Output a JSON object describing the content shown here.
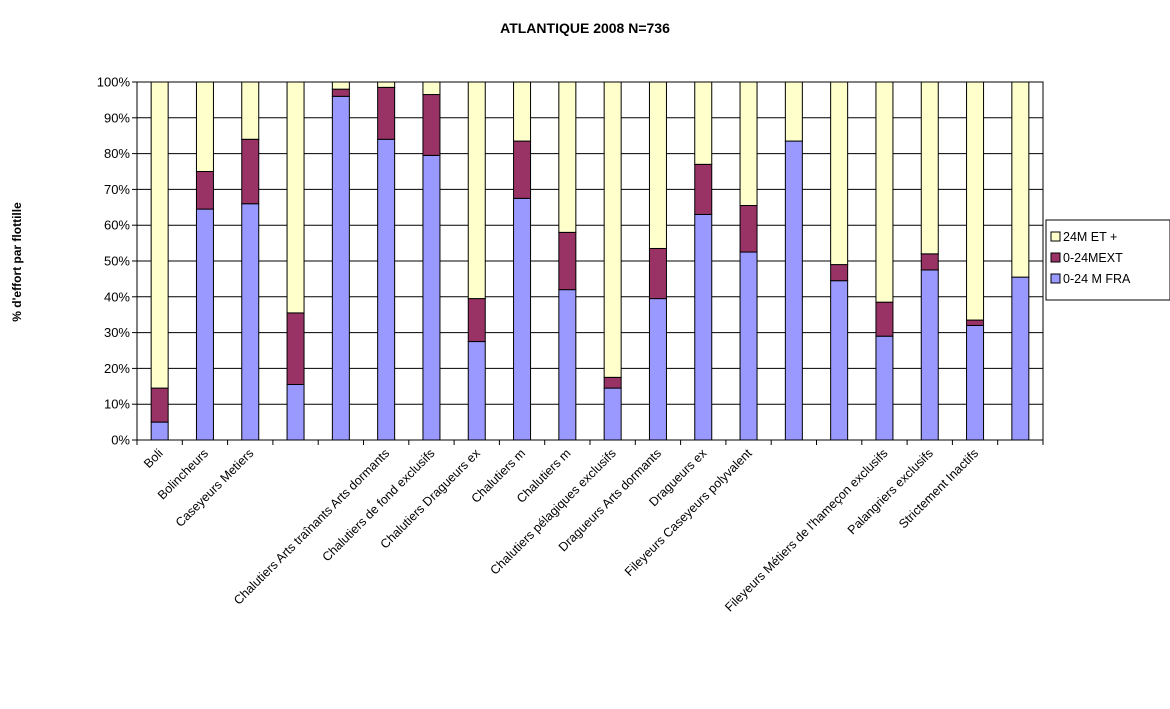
{
  "chart_data": {
    "type": "bar",
    "stacked": true,
    "percent": true,
    "title": "ATLANTIQUE 2008 N=736",
    "ylabel": "% d'effort par flottille",
    "xlabel": "",
    "ylim": [
      0,
      100
    ],
    "y_ticks": [
      "0%",
      "10%",
      "20%",
      "30%",
      "40%",
      "50%",
      "60%",
      "70%",
      "80%",
      "90%",
      "100%"
    ],
    "grid": true,
    "legend_position": "right",
    "categories": [
      "Boli",
      "Bolincheurs",
      "Caseyeurs Metiers",
      "",
      "Chalutiers Arts traînants Arts dormants",
      "Chalutiers de fond exclusifs",
      "Chalutiers Dragueurs ex",
      "Chalutiers m",
      "Chalutiers m",
      "Chalutiers pélagiques exclusifs",
      "Dragueurs Arts dormants",
      "Dragueurs ex",
      "Fileyeurs Caseyeurs polyvalent",
      "",
      "Fileyeurs Métiers de l'hameçon exclusifs",
      "Palangriers exclusifs",
      "Strictement Inactifs",
      "",
      "",
      ""
    ],
    "label_slots": [
      {
        "text": "Boli",
        "slot": 0
      },
      {
        "text": "Bolincheurs",
        "slot": 1
      },
      {
        "text": "Caseyeurs Metiers",
        "slot": 2
      },
      {
        "text": "Chalutiers Arts traînants Arts dormants",
        "slot": 5
      },
      {
        "text": "Chalutiers de fond exclusifs",
        "slot": 6
      },
      {
        "text": "Chalutiers Dragueurs ex",
        "slot": 7
      },
      {
        "text": "Chalutiers m",
        "slot": 8
      },
      {
        "text": "Chalutiers m",
        "slot": 9
      },
      {
        "text": "Chalutiers pélagiques exclusifs",
        "slot": 10
      },
      {
        "text": "Dragueurs Arts dormants",
        "slot": 11
      },
      {
        "text": "Dragueurs ex",
        "slot": 12
      },
      {
        "text": "Fileyeurs Caseyeurs polyvalent",
        "slot": 13
      },
      {
        "text": "Fileyeurs Métiers de l'hameçon exclusifs",
        "slot": 16
      },
      {
        "text": "Palangriers exclusifs",
        "slot": 17
      },
      {
        "text": "Strictement Inactifs",
        "slot": 18
      }
    ],
    "series": [
      {
        "name": "0-24 M FRA",
        "color": "#9999ff",
        "values": [
          5,
          64.5,
          66,
          15.5,
          96,
          84,
          79.5,
          27.5,
          67.5,
          42,
          14.5,
          39.5,
          63,
          52.5,
          83.5,
          44.5,
          29,
          47.5,
          32,
          45.5
        ]
      },
      {
        "name": "0-24MEXT",
        "color": "#993366",
        "values": [
          9.5,
          10.5,
          18,
          20,
          2,
          14.5,
          17,
          12,
          16,
          16,
          3,
          14,
          14,
          13,
          0,
          4.5,
          9.5,
          4.5,
          1.5,
          0
        ]
      },
      {
        "name": "24M  ET +",
        "color": "#ffffcc",
        "values": [
          85.5,
          25,
          16,
          64.5,
          2,
          1.5,
          3.5,
          60.5,
          16.5,
          42,
          82.5,
          46.5,
          23,
          34.5,
          16.5,
          51,
          61.5,
          48,
          66.5,
          54.5
        ]
      }
    ],
    "legend_order": [
      "24M  ET +",
      "0-24MEXT",
      "0-24 M FRA"
    ]
  }
}
